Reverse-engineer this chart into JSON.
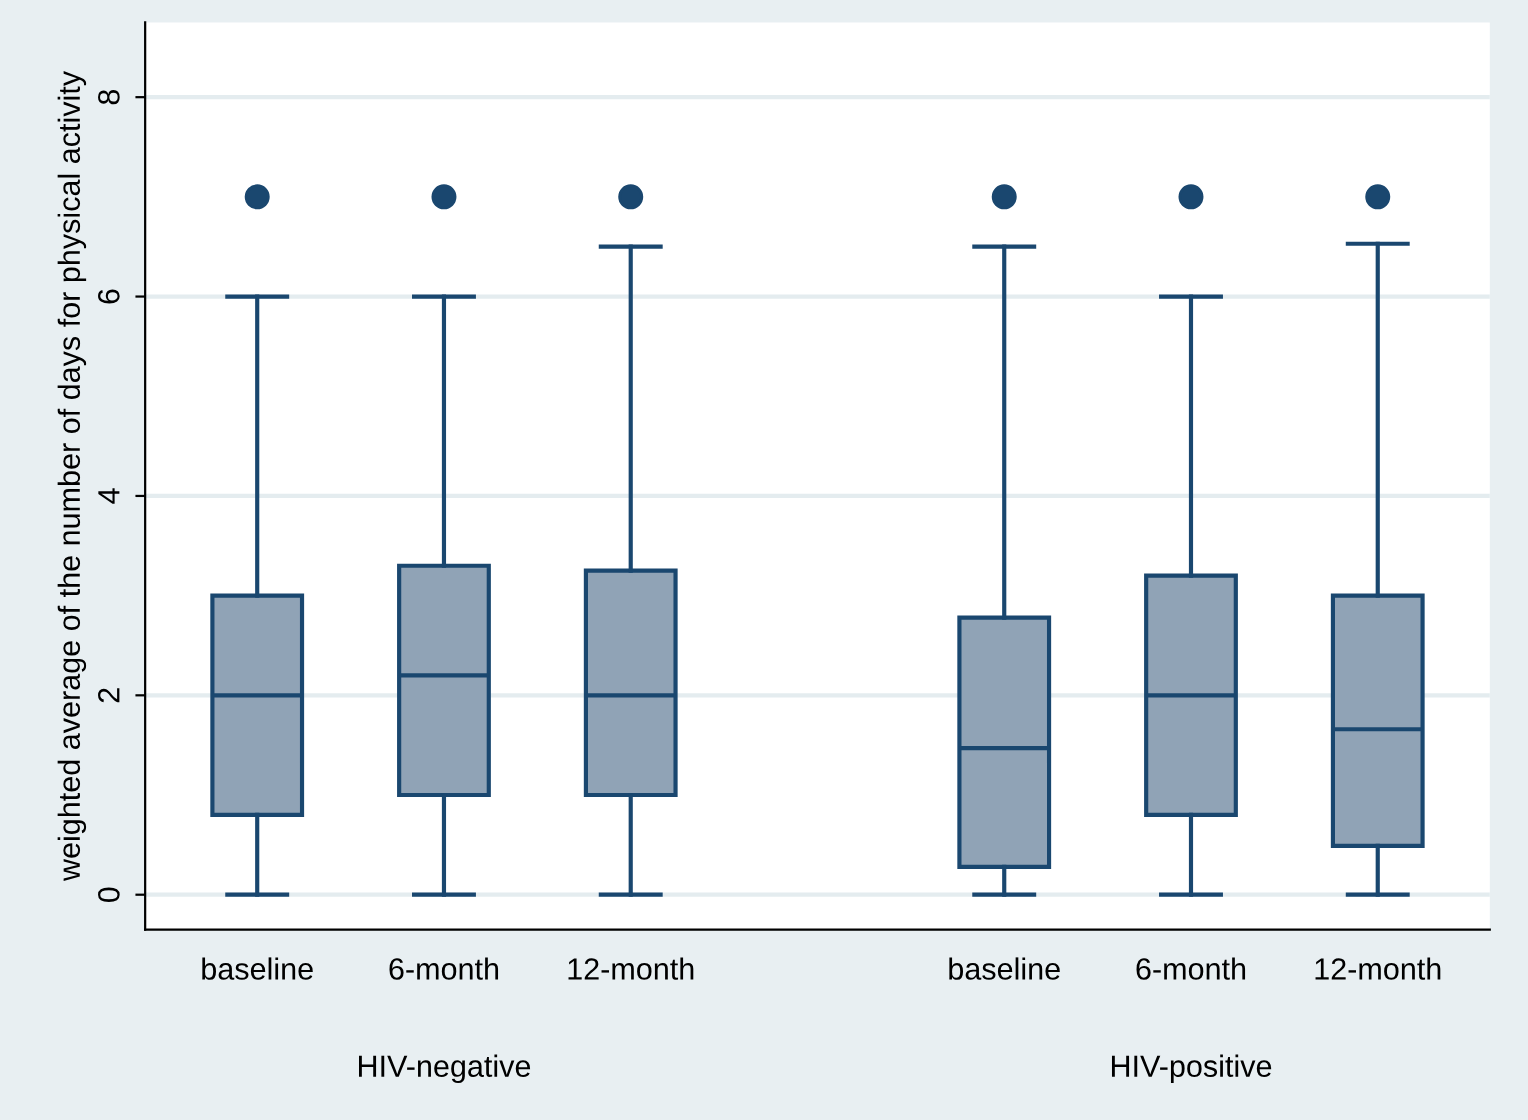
{
  "chart_data": {
    "type": "box",
    "ylabel": "weighted average of the number of days for physical activity",
    "categories": [
      "baseline",
      "6-month",
      "12-month",
      null,
      "baseline",
      "6-month",
      "12-month"
    ],
    "series": [
      {
        "color": "#90a3b6",
        "boxes": [
          {
            "low": 0,
            "q1": 0.8,
            "median": 2,
            "q3": 3,
            "high": 6,
            "outliers": [
              7
            ]
          },
          {
            "low": 0,
            "q1": 1,
            "median": 2.2,
            "q3": 3.3,
            "high": 6,
            "outliers": [
              7
            ]
          },
          {
            "low": 0,
            "q1": 1,
            "median": 2,
            "q3": 3.25,
            "high": 6.5,
            "outliers": [
              7
            ]
          },
          null,
          {
            "low": 0,
            "q1": 0.28,
            "median": 1.47,
            "q3": 2.78,
            "high": 6.5,
            "outliers": [
              7
            ]
          },
          {
            "low": 0,
            "q1": 0.8,
            "median": 2,
            "q3": 3.2,
            "high": 6,
            "outliers": [
              7
            ]
          },
          {
            "low": 0,
            "q1": 0.49,
            "median": 1.66,
            "q3": 3,
            "high": 6.53,
            "outliers": [
              7
            ]
          }
        ]
      }
    ],
    "annotations": [
      "HIV-negative",
      "HIV-positive"
    ],
    "ylim": [
      -0.35,
      8.75
    ],
    "yticks": [
      0,
      2,
      4,
      6,
      8
    ],
    "grid": "y"
  }
}
